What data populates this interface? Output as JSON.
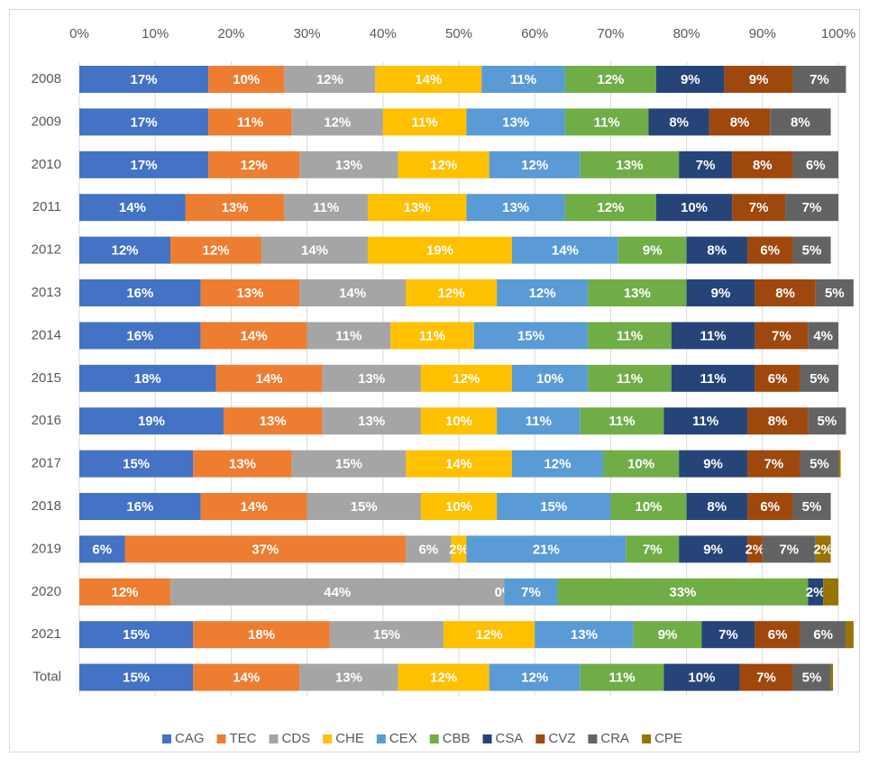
{
  "chart_data": {
    "type": "stacked-bar-horizontal",
    "categories": [
      "2008",
      "2009",
      "2010",
      "2011",
      "2012",
      "2013",
      "2014",
      "2015",
      "2016",
      "2017",
      "2018",
      "2019",
      "2020",
      "2021",
      "Total"
    ],
    "xlim": [
      0,
      100
    ],
    "xticks": [
      {
        "value": 0,
        "label": "0%"
      },
      {
        "value": 10,
        "label": "10%"
      },
      {
        "value": 20,
        "label": "20%"
      },
      {
        "value": 30,
        "label": "30%"
      },
      {
        "value": 40,
        "label": "40%"
      },
      {
        "value": 50,
        "label": "50%"
      },
      {
        "value": 60,
        "label": "60%"
      },
      {
        "value": 70,
        "label": "70%"
      },
      {
        "value": 80,
        "label": "80%"
      },
      {
        "value": 90,
        "label": "90%"
      },
      {
        "value": 100,
        "label": "100%"
      }
    ],
    "grid": true,
    "legend": "bottom",
    "series": [
      {
        "name": "CAG",
        "color": "#4472c4",
        "values": [
          17,
          17,
          17,
          14,
          12,
          16,
          16,
          18,
          19,
          15,
          16,
          6,
          0,
          15,
          15
        ],
        "value_labels": [
          "17%",
          "17%",
          "17%",
          "14%",
          "12%",
          "16%",
          "16%",
          "18%",
          "19%",
          "15%",
          "16%",
          "6%",
          null,
          "15%",
          "15%"
        ]
      },
      {
        "name": "TEC",
        "color": "#ed7d31",
        "values": [
          10,
          11,
          12,
          13,
          12,
          13,
          14,
          14,
          13,
          13,
          14,
          37,
          12,
          18,
          14
        ],
        "value_labels": [
          "10%",
          "11%",
          "12%",
          "13%",
          "12%",
          "13%",
          "14%",
          "14%",
          "13%",
          "13%",
          "14%",
          "37%",
          "12%",
          "18%",
          "14%"
        ]
      },
      {
        "name": "CDS",
        "color": "#a5a5a5",
        "values": [
          12,
          12,
          13,
          11,
          14,
          14,
          11,
          13,
          13,
          15,
          15,
          6,
          44,
          15,
          13
        ],
        "value_labels": [
          "12%",
          "12%",
          "13%",
          "11%",
          "14%",
          "14%",
          "11%",
          "13%",
          "13%",
          "15%",
          "15%",
          "6%",
          "44%",
          "15%",
          "13%"
        ]
      },
      {
        "name": "CHE",
        "color": "#ffc000",
        "values": [
          14,
          11,
          12,
          13,
          19,
          12,
          11,
          12,
          10,
          14,
          10,
          2,
          0,
          12,
          12
        ],
        "value_labels": [
          "14%",
          "11%",
          "12%",
          "13%",
          "19%",
          "12%",
          "11%",
          "12%",
          "10%",
          "14%",
          "10%",
          "2%",
          "0%",
          "12%",
          "12%"
        ]
      },
      {
        "name": "CEX",
        "color": "#5b9bd5",
        "values": [
          11,
          13,
          12,
          13,
          14,
          12,
          15,
          10,
          11,
          12,
          15,
          21,
          7,
          13,
          12
        ],
        "value_labels": [
          "11%",
          "13%",
          "12%",
          "13%",
          "14%",
          "12%",
          "15%",
          "10%",
          "11%",
          "12%",
          "15%",
          "21%",
          "7%",
          "13%",
          "12%"
        ]
      },
      {
        "name": "CBB",
        "color": "#70ad47",
        "values": [
          12,
          11,
          13,
          12,
          9,
          13,
          11,
          11,
          11,
          10,
          10,
          7,
          33,
          9,
          11
        ],
        "value_labels": [
          "12%",
          "11%",
          "13%",
          "12%",
          "9%",
          "13%",
          "11%",
          "11%",
          "11%",
          "10%",
          "10%",
          "7%",
          "33%",
          "9%",
          "11%"
        ]
      },
      {
        "name": "CSA",
        "color": "#264478",
        "values": [
          9,
          8,
          7,
          10,
          8,
          9,
          11,
          11,
          11,
          9,
          8,
          9,
          2,
          7,
          10
        ],
        "value_labels": [
          "9%",
          "8%",
          "7%",
          "10%",
          "8%",
          "9%",
          "11%",
          "11%",
          "11%",
          "9%",
          "8%",
          "9%",
          "2%",
          "7%",
          "10%"
        ]
      },
      {
        "name": "CVZ",
        "color": "#9e480e",
        "values": [
          9,
          8,
          8,
          7,
          6,
          8,
          7,
          6,
          8,
          7,
          6,
          2,
          0,
          6,
          7
        ],
        "value_labels": [
          "9%",
          "8%",
          "8%",
          "7%",
          "6%",
          "8%",
          "7%",
          "6%",
          "8%",
          "7%",
          "6%",
          "2%",
          null,
          "6%",
          "7%"
        ]
      },
      {
        "name": "CRA",
        "color": "#636363",
        "values": [
          7,
          8,
          6,
          7,
          5,
          5,
          4,
          5,
          5,
          5,
          5,
          7,
          0,
          6,
          5
        ],
        "value_labels": [
          "7%",
          "8%",
          "6%",
          "7%",
          "5%",
          "5%",
          "4%",
          "5%",
          "5%",
          "5%",
          "5%",
          "7%",
          null,
          "6%",
          "5%"
        ]
      },
      {
        "name": "CPE",
        "color": "#997300",
        "values": [
          0,
          0,
          0,
          0,
          0,
          0,
          0,
          0,
          0,
          0.3,
          0,
          2,
          2,
          1,
          0.3
        ],
        "value_labels": [
          null,
          null,
          null,
          null,
          null,
          null,
          null,
          null,
          null,
          null,
          null,
          "2%",
          null,
          null,
          null
        ]
      }
    ]
  }
}
